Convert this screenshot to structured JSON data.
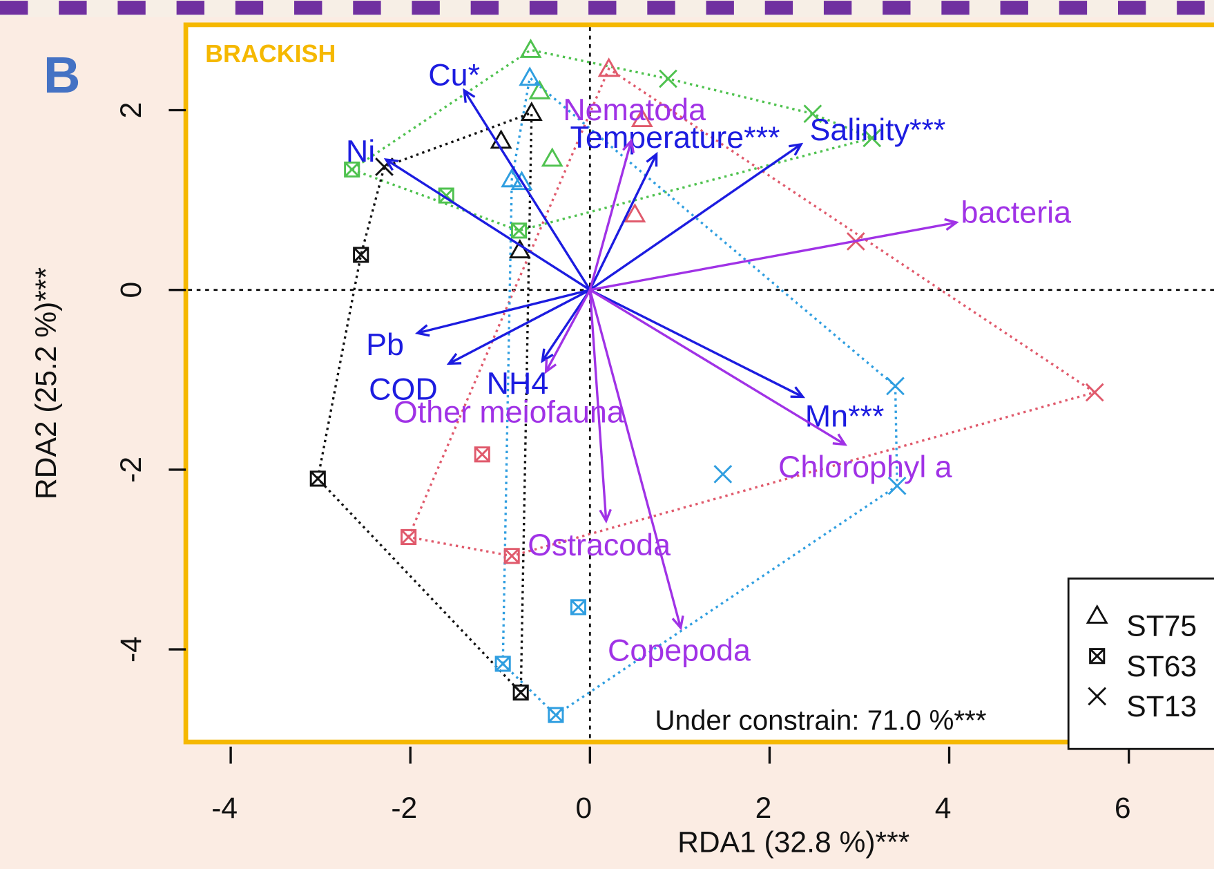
{
  "chart_data": {
    "type": "biplot",
    "panel_label": "B",
    "title": "BRACKISH",
    "xlabel": "RDA1 (32.8 %)***",
    "ylabel": "RDA2 (25.2 %)***",
    "annotation": "Under constrain: 71.0 %***",
    "xlim": [
      -4.5,
      7.0
    ],
    "ylim": [
      -5.03,
      2.95
    ],
    "xticks": [
      -4,
      -2,
      0,
      2,
      4,
      6
    ],
    "yticks": [
      -4,
      -2,
      0,
      2
    ],
    "legend": "bottom-right",
    "series": [
      {
        "name": "ST75",
        "marker": "triangle",
        "x": [
          -0.66,
          -0.56,
          -0.42,
          0.21,
          0.58,
          0.5,
          -0.67,
          -0.87,
          -0.76,
          -0.65,
          -0.99,
          -0.78
        ],
        "y": [
          2.67,
          2.21,
          1.46,
          2.46,
          1.9,
          0.84,
          2.36,
          1.23,
          1.2,
          1.97,
          1.66,
          0.44
        ],
        "colors": [
          "#4fc24f",
          "#4fc24f",
          "#4fc24f",
          "#e05a6c",
          "#e05a6c",
          "#e05a6c",
          "#2f9ee0",
          "#2f9ee0",
          "#2f9ee0",
          "#111111",
          "#111111",
          "#111111"
        ]
      },
      {
        "name": "ST63",
        "marker": "boxed-x",
        "x": [
          -2.65,
          -1.6,
          -0.79,
          -1.2,
          -2.02,
          -0.87,
          -0.13,
          -0.97,
          -0.38,
          -2.55,
          -3.03,
          -0.77
        ],
        "y": [
          1.34,
          1.05,
          0.66,
          -1.83,
          -2.75,
          -2.96,
          -3.53,
          -4.16,
          -4.73,
          0.39,
          -2.1,
          -4.48
        ],
        "colors": [
          "#4fc24f",
          "#4fc24f",
          "#4fc24f",
          "#e05a6c",
          "#e05a6c",
          "#e05a6c",
          "#2f9ee0",
          "#2f9ee0",
          "#2f9ee0",
          "#111111",
          "#111111",
          "#111111"
        ]
      },
      {
        "name": "ST13",
        "marker": "x",
        "x": [
          0.87,
          2.48,
          3.14,
          2.96,
          5.62,
          3.4,
          1.48,
          3.42,
          -2.29
        ],
        "y": [
          2.35,
          1.96,
          1.69,
          0.54,
          -1.14,
          -1.07,
          -2.05,
          -2.18,
          1.37
        ],
        "colors": [
          "#4fc24f",
          "#4fc24f",
          "#4fc24f",
          "#e05a6c",
          "#e05a6c",
          "#2f9ee0",
          "#2f9ee0",
          "#2f9ee0",
          "#111111"
        ]
      }
    ],
    "vectors": [
      {
        "name": "Cu*",
        "x": -1.4,
        "y": 2.22,
        "color": "#1c1ce0"
      },
      {
        "name": "Ni",
        "x": -2.27,
        "y": 1.45,
        "color": "#1c1ce0"
      },
      {
        "name": "Temperature***",
        "x": 0.74,
        "y": 1.51,
        "color": "#1c1ce0"
      },
      {
        "name": "Salinity***",
        "x": 2.35,
        "y": 1.62,
        "color": "#1c1ce0"
      },
      {
        "name": "Pb",
        "x": -1.92,
        "y": -0.48,
        "color": "#1c1ce0"
      },
      {
        "name": "COD",
        "x": -1.57,
        "y": -0.82,
        "color": "#1c1ce0"
      },
      {
        "name": "NH4",
        "x": -0.53,
        "y": -0.79,
        "color": "#1c1ce0"
      },
      {
        "name": "Mn***",
        "x": 2.37,
        "y": -1.19,
        "color": "#1c1ce0"
      },
      {
        "name": "Nematoda",
        "x": 0.46,
        "y": 1.66,
        "color": "#a032e6"
      },
      {
        "name": "bacteria",
        "x": 4.08,
        "y": 0.75,
        "color": "#a032e6"
      },
      {
        "name": "Other meiofauna",
        "x": -0.49,
        "y": -0.91,
        "color": "#a032e6"
      },
      {
        "name": "Chlorophyl a",
        "x": 2.84,
        "y": -1.72,
        "color": "#a032e6"
      },
      {
        "name": "Ostracoda",
        "x": 0.18,
        "y": -2.57,
        "color": "#a032e6"
      },
      {
        "name": "Copepoda",
        "x": 1.01,
        "y": -3.76,
        "color": "#a032e6"
      }
    ]
  }
}
